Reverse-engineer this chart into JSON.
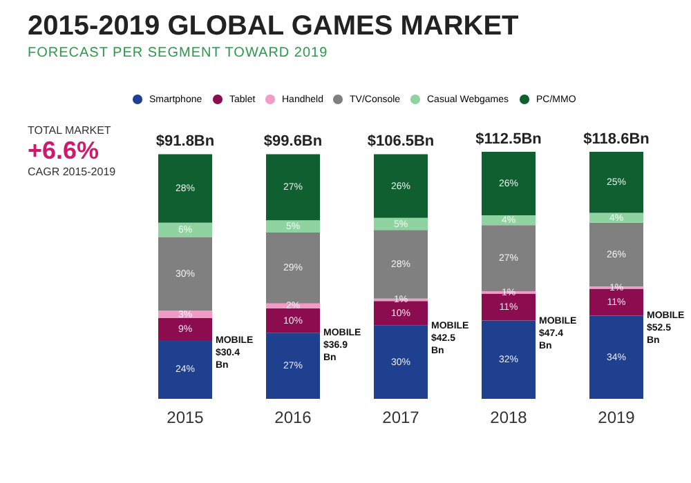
{
  "chart_data": {
    "type": "bar",
    "stacked": true,
    "title": "2015-2019 GLOBAL GAMES MARKET",
    "subtitle": "FORECAST PER SEGMENT TOWARD 2019",
    "categories": [
      "2015",
      "2016",
      "2017",
      "2018",
      "2019"
    ],
    "series": [
      {
        "name": "Smartphone",
        "color": "#1f3f8f",
        "values": [
          24,
          27,
          30,
          32,
          34
        ],
        "value_labels": [
          "24%",
          "27%",
          "30%",
          "32%",
          "34%"
        ]
      },
      {
        "name": "Tablet",
        "color": "#8b0c4f",
        "values": [
          9,
          10,
          10,
          11,
          11
        ],
        "value_labels": [
          "9%",
          "10%",
          "10%",
          "11%",
          "11%"
        ]
      },
      {
        "name": "Handheld",
        "color": "#f09cc6",
        "values": [
          3,
          2,
          1,
          1,
          1
        ],
        "value_labels": [
          "3%",
          "2%",
          "1%",
          "1%",
          "1%"
        ]
      },
      {
        "name": "TV/Console",
        "color": "#808080",
        "values": [
          30,
          29,
          28,
          27,
          26
        ],
        "value_labels": [
          "30%",
          "29%",
          "28%",
          "27%",
          "26%"
        ]
      },
      {
        "name": "Casual Webgames",
        "color": "#8fd3a0",
        "values": [
          6,
          5,
          5,
          4,
          4
        ],
        "value_labels": [
          "6%",
          "5%",
          "5%",
          "4%",
          "4%"
        ]
      },
      {
        "name": "PC/MMO",
        "color": "#0f5f30",
        "values": [
          28,
          27,
          26,
          26,
          25
        ],
        "value_labels": [
          "28%",
          "27%",
          "26%",
          "26%",
          "25%"
        ]
      }
    ],
    "annotations": [
      "TOTAL MARKET",
      "+6.6%",
      "CAGR 2015-2019",
      {
        "text": "$91.8Bn",
        "x": "2015",
        "y": 100
      },
      {
        "text": "$99.6Bn",
        "x": "2016",
        "y": 100
      },
      {
        "text": "$106.5Bn",
        "x": "2017",
        "y": 100
      },
      {
        "text": "$112.5Bn",
        "x": "2018",
        "y": 101
      },
      {
        "text": "$118.6Bn",
        "x": "2019",
        "y": 101
      },
      "MOBILE $30.4 Bn",
      "MOBILE $36.9 Bn",
      "MOBILE $42.5 Bn",
      "MOBILE $47.4 Bn",
      "MOBILE $52.5 Bn"
    ],
    "tick_labels": "x",
    "legend": "top"
  }
}
